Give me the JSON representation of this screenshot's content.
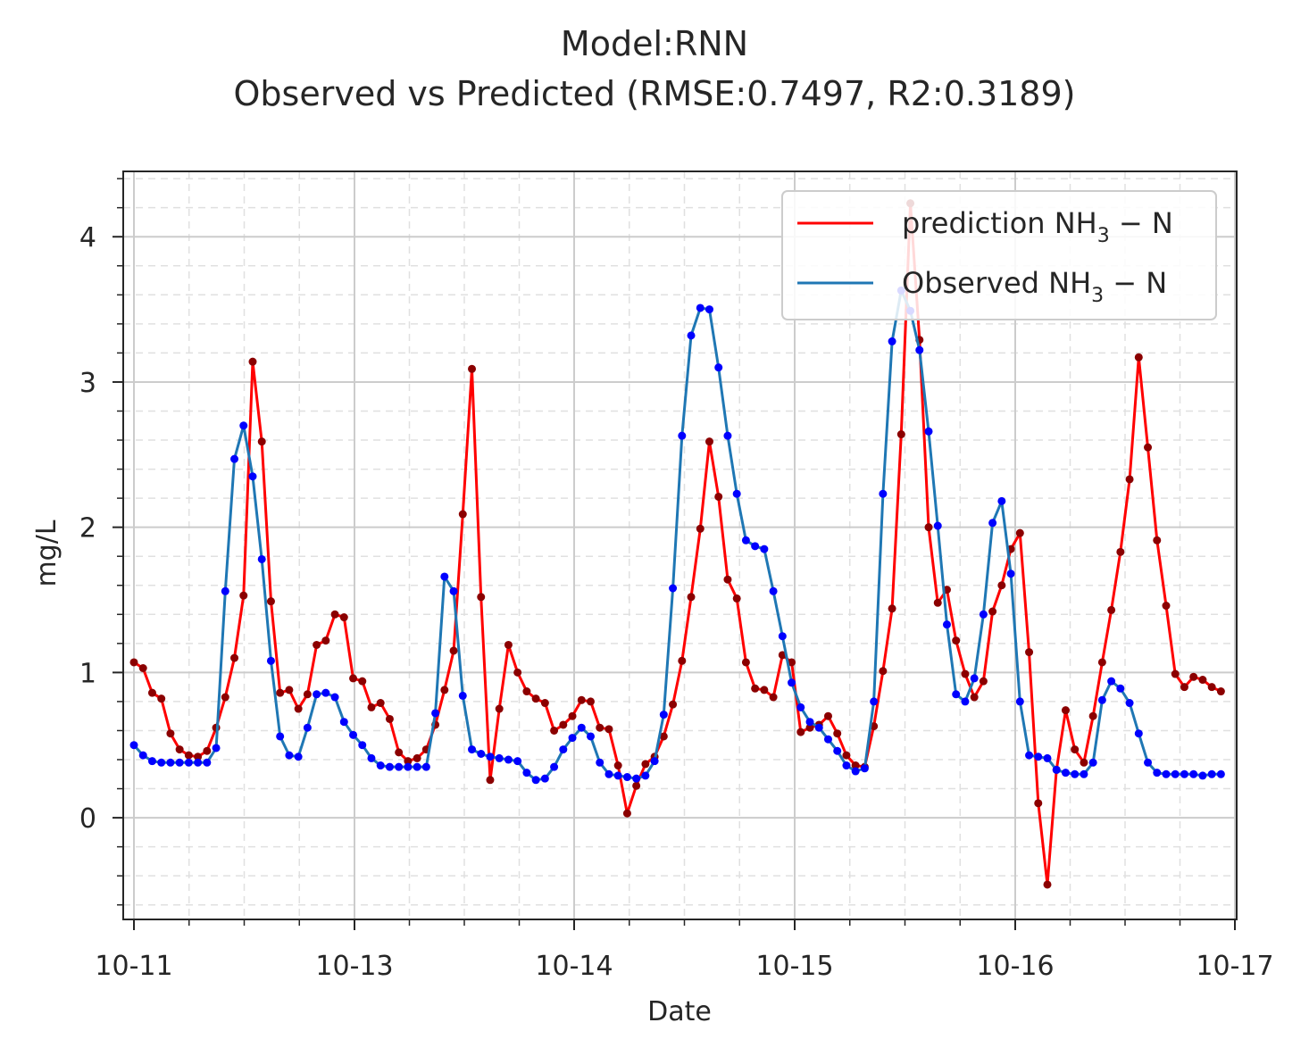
{
  "chart_data": {
    "type": "line",
    "title": "Model:RNN",
    "subtitle": "Observed vs Predicted (RMSE:0.7497, R2:0.3189)",
    "xlabel": "Date",
    "ylabel": "mg/L",
    "x_ticks": [
      "10-11",
      "10-13",
      "10-14",
      "10-15",
      "10-16",
      "10-17"
    ],
    "y_ticks": [
      "0",
      "1",
      "2",
      "3",
      "4"
    ],
    "ylim": [
      -0.7,
      4.45
    ],
    "grid": true,
    "legend_position": "top-right",
    "x_unit": "hours from first point, 4-hour spacing",
    "series": [
      {
        "name": "prediction NH3-N",
        "legend_main": "prediction NH",
        "legend_sub": "3",
        "legend_tail": " − N",
        "color": "#ff0000",
        "marker_color": "#8b0000",
        "values": [
          1.07,
          1.03,
          0.86,
          0.82,
          0.58,
          0.47,
          0.43,
          0.42,
          0.46,
          0.62,
          0.83,
          1.1,
          1.53,
          3.14,
          2.59,
          1.49,
          0.86,
          0.88,
          0.75,
          0.85,
          1.19,
          1.22,
          1.4,
          1.38,
          0.96,
          0.94,
          0.76,
          0.79,
          0.68,
          0.45,
          0.39,
          0.41,
          0.47,
          0.64,
          0.88,
          1.15,
          2.09,
          3.09,
          1.52,
          0.26,
          0.75,
          1.19,
          1.0,
          0.87,
          0.82,
          0.79,
          0.6,
          0.64,
          0.7,
          0.81,
          0.8,
          0.62,
          0.61,
          0.36,
          0.03,
          0.22,
          0.37,
          0.42,
          0.56,
          0.78,
          1.08,
          1.52,
          1.99,
          2.59,
          2.21,
          1.64,
          1.51,
          1.07,
          0.89,
          0.88,
          0.83,
          1.12,
          1.07,
          0.59,
          0.62,
          0.64,
          0.7,
          0.58,
          0.43,
          0.36,
          0.35,
          0.63,
          1.01,
          1.44,
          2.64,
          4.23,
          3.29,
          2.0,
          1.48,
          1.57,
          1.22,
          0.99,
          0.83,
          0.94,
          1.42,
          1.6,
          1.85,
          1.96,
          1.14,
          0.1,
          -0.46,
          0.33,
          0.74,
          0.47,
          0.38,
          0.7,
          1.07,
          1.43,
          1.83,
          2.33,
          3.17,
          2.55,
          1.91,
          1.46,
          0.99,
          0.9,
          0.97,
          0.95,
          0.9,
          0.87
        ]
      },
      {
        "name": "Observed NH3-N",
        "legend_main": "Observed NH",
        "legend_sub": "3",
        "legend_tail": " − N",
        "color": "#1f77b4",
        "marker_color": "#0000ff",
        "values": [
          0.5,
          0.43,
          0.39,
          0.38,
          0.38,
          0.38,
          0.38,
          0.38,
          0.38,
          0.48,
          1.56,
          2.47,
          2.7,
          2.35,
          1.78,
          1.08,
          0.56,
          0.43,
          0.42,
          0.62,
          0.85,
          0.86,
          0.83,
          0.66,
          0.57,
          0.5,
          0.41,
          0.36,
          0.35,
          0.35,
          0.35,
          0.35,
          0.35,
          0.72,
          1.66,
          1.56,
          0.84,
          0.47,
          0.44,
          0.42,
          0.41,
          0.4,
          0.39,
          0.31,
          0.26,
          0.27,
          0.35,
          0.47,
          0.55,
          0.62,
          0.56,
          0.38,
          0.3,
          0.29,
          0.28,
          0.27,
          0.29,
          0.39,
          0.71,
          1.58,
          2.63,
          3.32,
          3.51,
          3.5,
          3.1,
          2.63,
          2.23,
          1.91,
          1.87,
          1.85,
          1.56,
          1.25,
          0.93,
          0.76,
          0.66,
          0.62,
          0.54,
          0.46,
          0.36,
          0.32,
          0.34,
          0.8,
          2.23,
          3.28,
          3.63,
          3.49,
          3.22,
          2.66,
          2.01,
          1.33,
          0.85,
          0.8,
          0.96,
          1.4,
          2.03,
          2.18,
          1.68,
          0.8,
          0.43,
          0.42,
          0.41,
          0.33,
          0.31,
          0.3,
          0.3,
          0.38,
          0.81,
          0.94,
          0.89,
          0.79,
          0.58,
          0.38,
          0.31,
          0.3,
          0.3,
          0.3,
          0.3,
          0.29,
          0.3,
          0.3
        ]
      }
    ]
  }
}
